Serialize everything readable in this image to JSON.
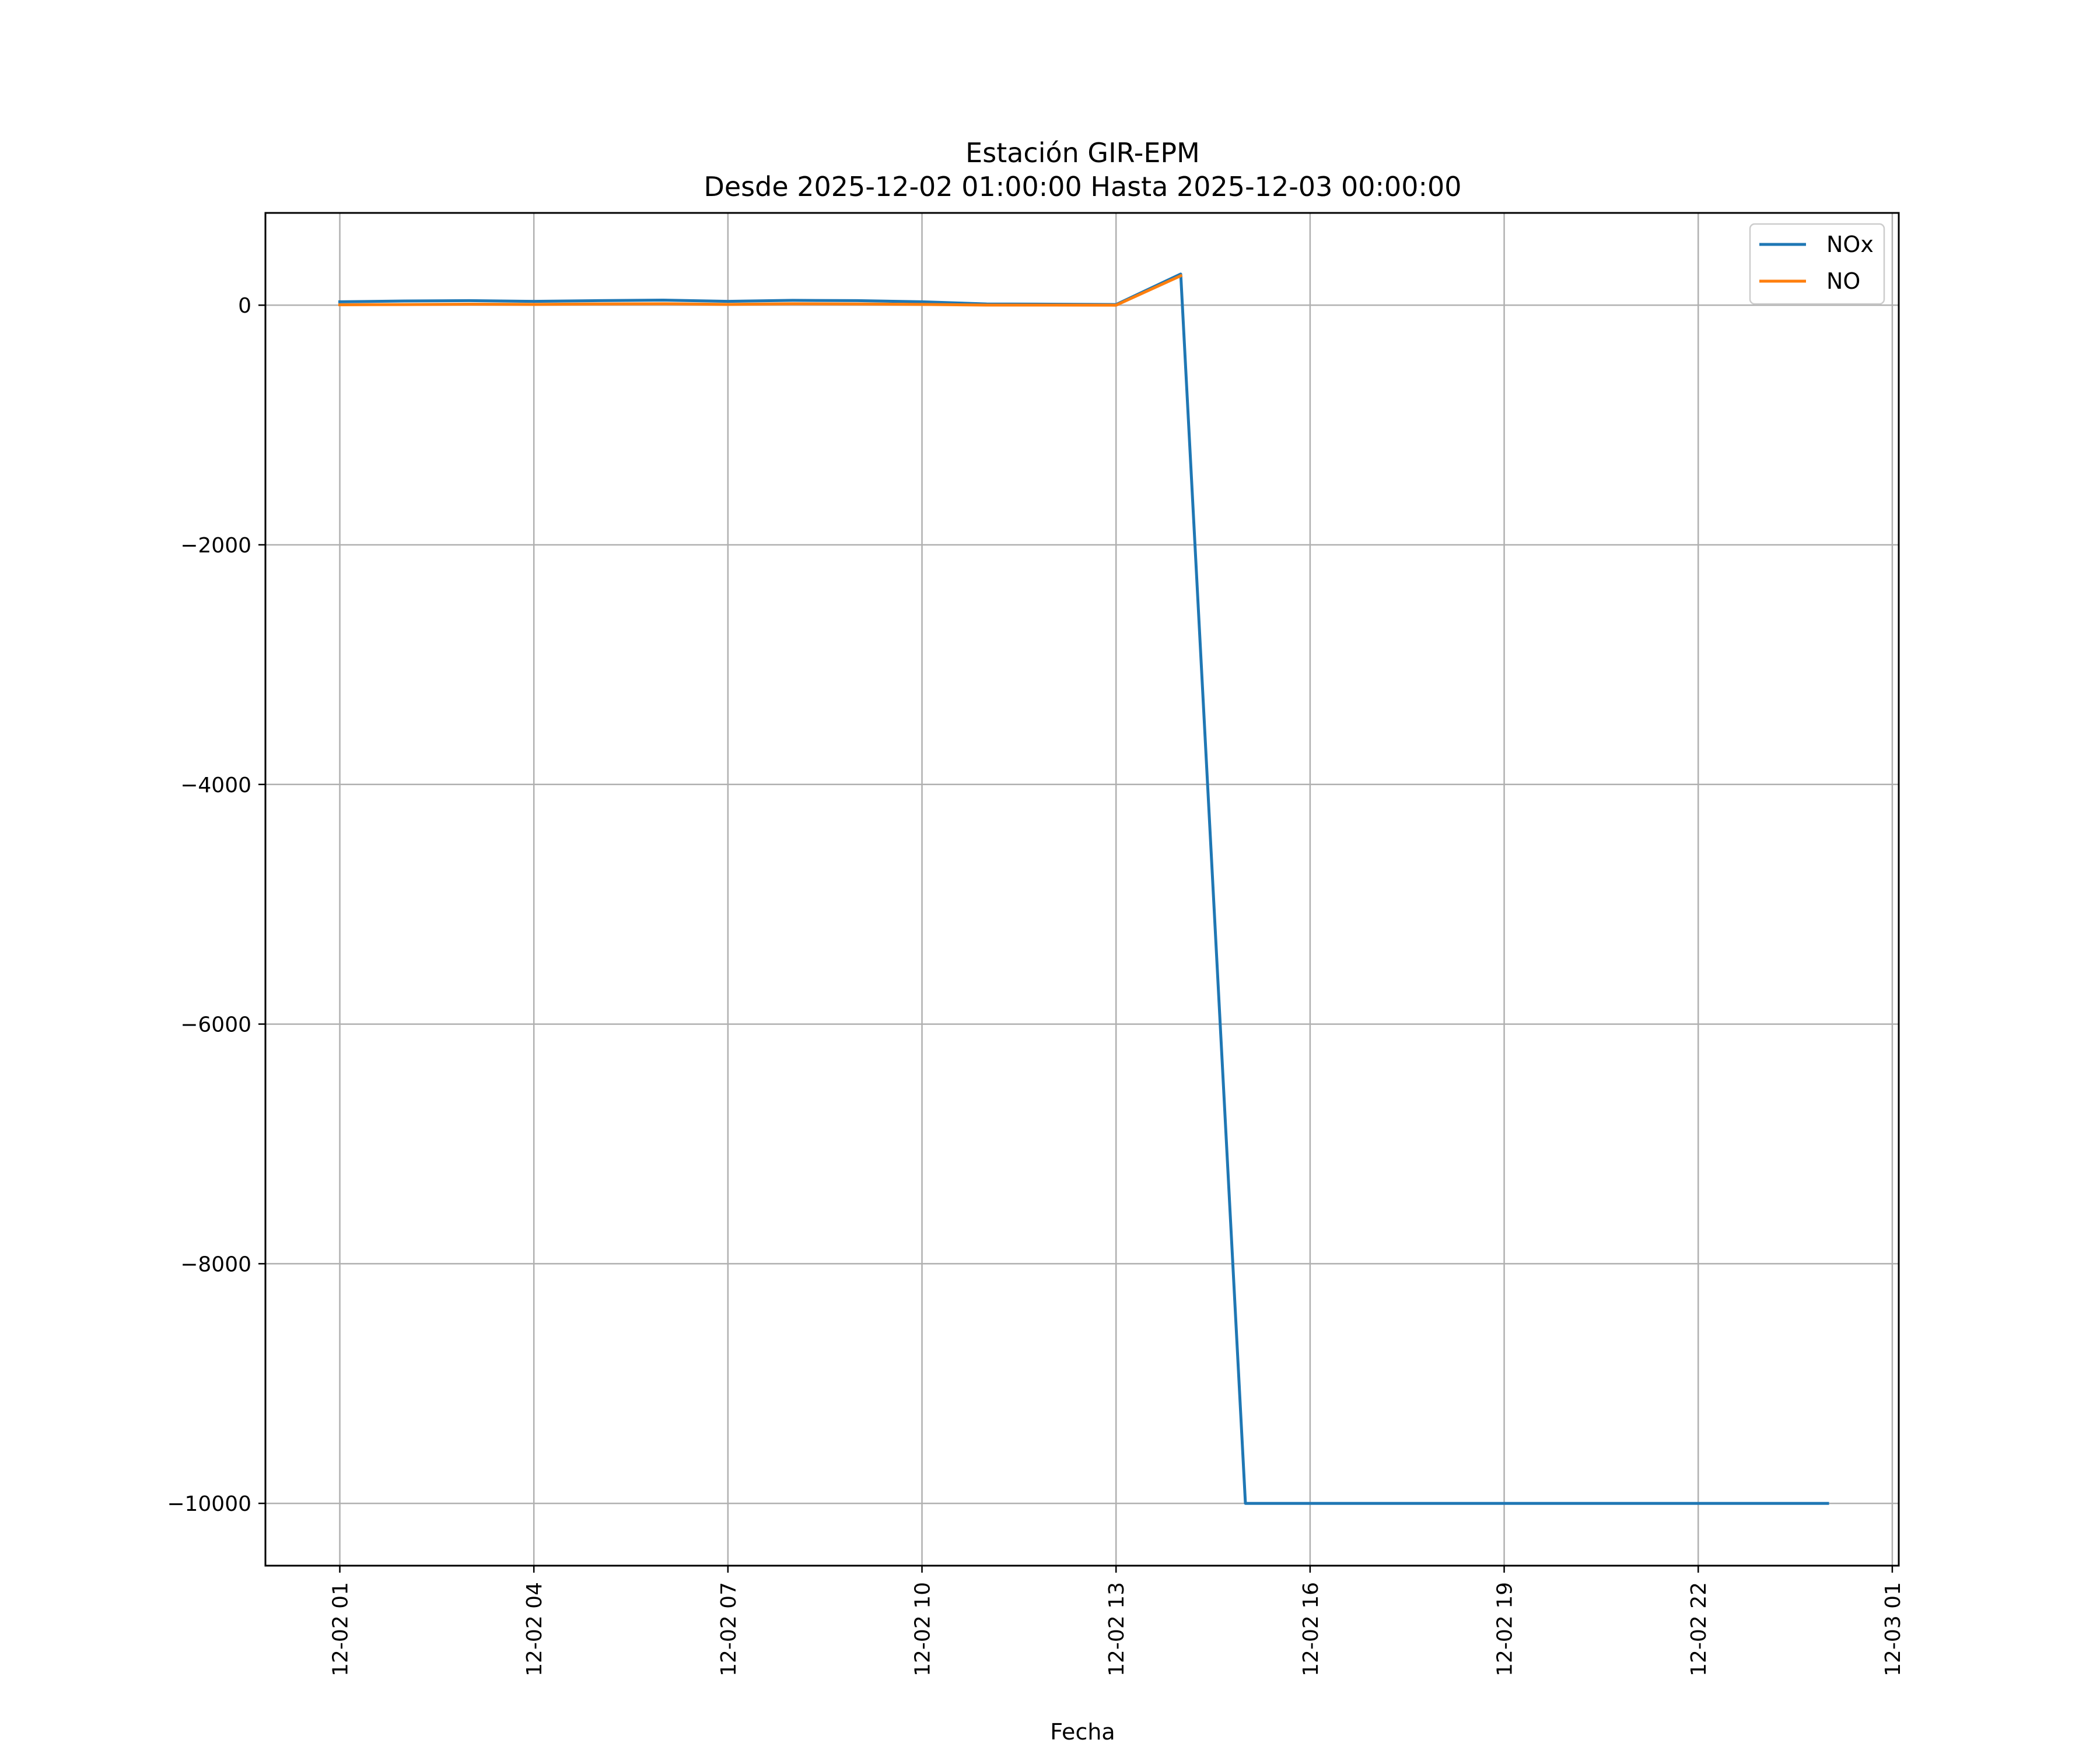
{
  "chart_data": {
    "type": "line",
    "title": "Estación GIR-EPM",
    "subtitle": "Desde 2025-12-02 01:00:00 Hasta 2025-12-03 00:00:00",
    "xlabel": "Fecha",
    "ylabel": "",
    "x_tick_labels": [
      "12-02 01",
      "12-02 04",
      "12-02 07",
      "12-02 10",
      "12-02 13",
      "12-02 16",
      "12-02 19",
      "12-02 22",
      "12-03 01"
    ],
    "x_tick_hours": [
      1,
      4,
      7,
      10,
      13,
      16,
      19,
      22,
      25
    ],
    "y_ticks": [
      0,
      -2000,
      -4000,
      -6000,
      -8000,
      -10000
    ],
    "y_tick_labels": [
      "0",
      "−2000",
      "−4000",
      "−6000",
      "−8000",
      "−10000"
    ],
    "xlim_hours": [
      -0.15,
      25.1
    ],
    "ylim": [
      -10520,
      770
    ],
    "grid": true,
    "legend_position": "top-right",
    "series": [
      {
        "name": "NOx",
        "color": "#1f77b4",
        "x_hours": [
          1,
          2,
          3,
          4,
          5,
          6,
          7,
          8,
          9,
          10,
          11,
          12,
          13,
          14,
          15,
          16,
          17,
          18,
          19,
          20,
          21,
          22,
          23,
          24
        ],
        "values": [
          28,
          35,
          38,
          32,
          38,
          42,
          32,
          40,
          38,
          28,
          10,
          8,
          5,
          260,
          -10000,
          -10000,
          -10000,
          -10000,
          -10000,
          -10000,
          -10000,
          -10000,
          -10000,
          -10000
        ]
      },
      {
        "name": "NO",
        "color": "#ff7f0e",
        "x_hours": [
          1,
          2,
          3,
          4,
          5,
          6,
          7,
          8,
          9,
          10,
          11,
          12,
          13,
          14
        ],
        "values": [
          3,
          5,
          8,
          6,
          10,
          12,
          6,
          12,
          10,
          6,
          1,
          1,
          0,
          245
        ]
      }
    ]
  }
}
